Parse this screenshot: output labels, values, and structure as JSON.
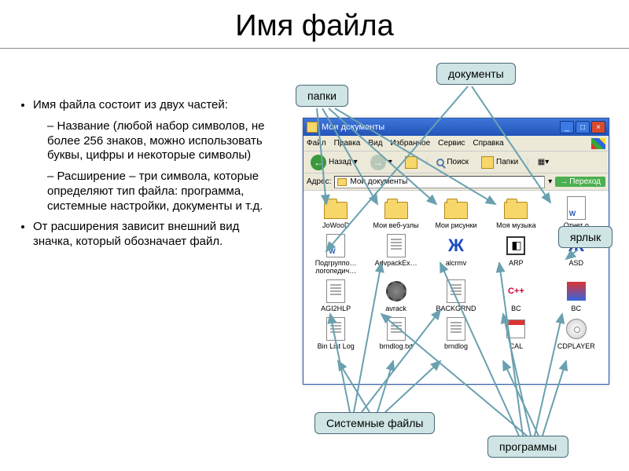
{
  "title": "Имя файла",
  "bullets": {
    "main1": "Имя файла состоит из двух частей:",
    "sub1": "Название (любой набор символов, не более 256 знаков, можно использовать буквы, цифры и некоторые символы)",
    "sub2": "Расширение – три символа, которые определяют тип файла: программа, системные настройки, документы и т.д.",
    "main2": "От расширения зависит внешний вид значка, который обозначает файл."
  },
  "callouts": {
    "folders": "папки",
    "documents": "документы",
    "shortcut": "ярлык",
    "system_files": "Системные файлы",
    "programs": "программы"
  },
  "callout_style": {
    "bg": "#cfe4e4",
    "border": "#4a6a7a",
    "fontsize": 14
  },
  "arrow_color": "#6aa0b0",
  "explorer": {
    "title": "Мои документы",
    "menu": [
      "Файл",
      "Правка",
      "Вид",
      "Избранное",
      "Сервис",
      "Справка"
    ],
    "toolbar": {
      "back": "Назад",
      "search": "Поиск",
      "folders": "Папки"
    },
    "address_label": "Адрес:",
    "address_value": "Мои документы",
    "go_label": "Переход",
    "files": [
      {
        "name": "JoWooD",
        "type": "folder"
      },
      {
        "name": "Мои веб-узлы",
        "type": "folder"
      },
      {
        "name": "Мои рисунки",
        "type": "folder"
      },
      {
        "name": "Моя музыка",
        "type": "folder"
      },
      {
        "name": "Отчет о",
        "type": "doc-word"
      },
      {
        "name": "Подгруппо… логопедич…",
        "type": "doc-word"
      },
      {
        "name": "AdvpackEx…",
        "type": "doc-lines"
      },
      {
        "name": "alcrmv",
        "type": "asd"
      },
      {
        "name": "ARP",
        "type": "arp"
      },
      {
        "name": "ASD",
        "type": "asd"
      },
      {
        "name": "AGI2HLP",
        "type": "doc-lines"
      },
      {
        "name": "avrack",
        "type": "gear"
      },
      {
        "name": "BACKGRND",
        "type": "doc-lines"
      },
      {
        "name": "BC",
        "type": "bc"
      },
      {
        "name": "BC",
        "type": "bc2"
      },
      {
        "name": "Bin List Log",
        "type": "doc-lines"
      },
      {
        "name": "brndlog.txt",
        "type": "doc-lines"
      },
      {
        "name": "brndlog",
        "type": "doc-lines"
      },
      {
        "name": "CAL",
        "type": "cal"
      },
      {
        "name": "CDPLAYER",
        "type": "cd"
      }
    ]
  }
}
